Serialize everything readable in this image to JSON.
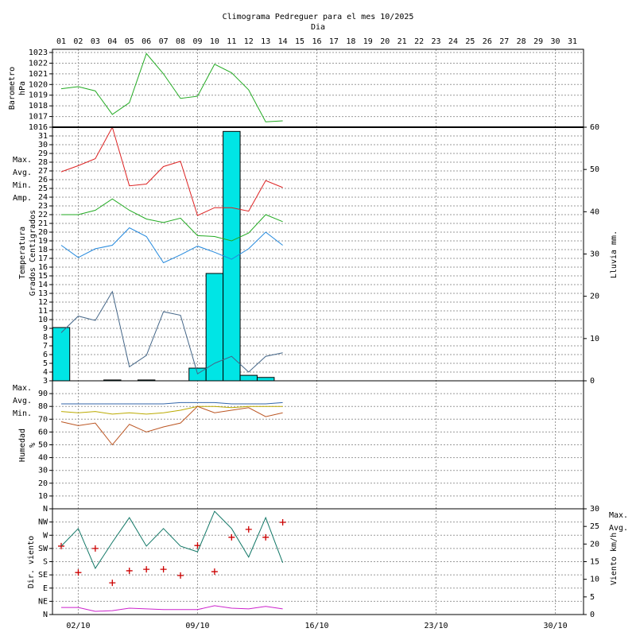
{
  "chart_data": {
    "title": "Climograma Pedreguer para el mes 10/2025",
    "subtitle": "Dia",
    "categories": [
      "01",
      "02",
      "03",
      "04",
      "05",
      "06",
      "07",
      "08",
      "09",
      "10",
      "11",
      "12",
      "13",
      "14",
      "15",
      "16",
      "17",
      "18",
      "19",
      "20",
      "21",
      "22",
      "23",
      "24",
      "25",
      "26",
      "27",
      "28",
      "29",
      "30",
      "31"
    ],
    "xticks": [
      {
        "value": 2,
        "label": "02/10"
      },
      {
        "value": 9,
        "label": "09/10"
      },
      {
        "value": 16,
        "label": "16/10"
      },
      {
        "value": 23,
        "label": "23/10"
      },
      {
        "value": 30,
        "label": "30/10"
      }
    ],
    "grid": true,
    "panels": [
      {
        "type": "line",
        "ylabel": [
          "Barometro",
          "hPa"
        ],
        "ylabel_color": "#22aa22",
        "ylim": [
          1016,
          1023.3
        ],
        "yticks": [
          1016,
          1017,
          1018,
          1019,
          1020,
          1021,
          1022,
          1023
        ],
        "series": [
          {
            "type": "line",
            "color": "#22aa22",
            "values": [
              1019.6,
              1019.8,
              1019.4,
              1017.2,
              1018.3,
              1022.9,
              1021.0,
              1018.7,
              1018.9,
              1021.9,
              1021.1,
              1019.5,
              1016.5,
              1016.6,
              null,
              null,
              null,
              null,
              null,
              null,
              null,
              null,
              null,
              null,
              null,
              null,
              null,
              null,
              null,
              null,
              null
            ]
          }
        ]
      },
      {
        "type": "line",
        "ylabel": [
          "Temperatura",
          "Grados Centigrados"
        ],
        "ylabel_color": "#dd2222",
        "ylim": [
          3,
          32
        ],
        "yticks": [
          3,
          4,
          5,
          6,
          7,
          8,
          9,
          10,
          11,
          12,
          13,
          14,
          15,
          16,
          17,
          18,
          19,
          20,
          21,
          22,
          23,
          24,
          25,
          26,
          27,
          28,
          29,
          30,
          31
        ],
        "y2label": "Lluvia mm.",
        "y2label_color": "#00c8c8",
        "y2lim": [
          0,
          60
        ],
        "y2ticks": [
          0,
          10,
          20,
          30,
          40,
          50,
          60
        ],
        "series": [
          {
            "type": "bar",
            "axis": "y2",
            "color": "#00e5e5",
            "values": [
              12.6,
              0,
              0,
              0.2,
              0,
              0.2,
              0,
              0,
              3.0,
              25.4,
              59.0,
              1.3,
              0.8,
              0,
              null,
              null,
              null,
              null,
              null,
              null,
              null,
              null,
              null,
              null,
              null,
              null,
              null,
              null,
              null,
              null,
              null
            ]
          },
          {
            "type": "line",
            "name": "Max.",
            "color": "#dd2222",
            "values": [
              26.9,
              27.6,
              28.4,
              32,
              25.3,
              25.5,
              27.5,
              28.1,
              21.9,
              22.8,
              22.8,
              22.4,
              25.9,
              25.1,
              null,
              null,
              null,
              null,
              null,
              null,
              null,
              null,
              null,
              null,
              null,
              null,
              null,
              null,
              null,
              null,
              null
            ]
          },
          {
            "type": "line",
            "name": "Avg.",
            "color": "#22aa22",
            "values": [
              22.0,
              22.0,
              22.5,
              23.8,
              22.5,
              21.5,
              21.1,
              21.6,
              19.6,
              19.5,
              19.0,
              19.9,
              22.0,
              21.2,
              null,
              null,
              null,
              null,
              null,
              null,
              null,
              null,
              null,
              null,
              null,
              null,
              null,
              null,
              null,
              null,
              null
            ]
          },
          {
            "type": "line",
            "name": "Min.",
            "color": "#2288dd",
            "values": [
              18.5,
              17.1,
              18.1,
              18.5,
              20.5,
              19.5,
              16.5,
              17.4,
              18.4,
              17.7,
              16.9,
              18.1,
              20.0,
              18.5,
              null,
              null,
              null,
              null,
              null,
              null,
              null,
              null,
              null,
              null,
              null,
              null,
              null,
              null,
              null,
              null,
              null
            ]
          },
          {
            "type": "line",
            "name": "Amp.",
            "color": "#446688",
            "values": [
              8.5,
              10.4,
              9.9,
              13.2,
              4.6,
              5.9,
              10.9,
              10.5,
              3.8,
              5.0,
              5.8,
              4.0,
              5.8,
              6.2,
              null,
              null,
              null,
              null,
              null,
              null,
              null,
              null,
              null,
              null,
              null,
              null,
              null,
              null,
              null,
              null,
              null
            ]
          }
        ]
      },
      {
        "type": "line",
        "ylabel": [
          "Humedad",
          "%"
        ],
        "ylabel_color": "#bb5522",
        "ylim": [
          0,
          100
        ],
        "yticks": [
          10,
          20,
          30,
          40,
          50,
          60,
          70,
          80,
          90
        ],
        "series": [
          {
            "type": "line",
            "name": "Max.",
            "color": "#3366aa",
            "values": [
              82,
              82,
              82,
              82,
              82,
              82,
              82,
              83,
              83,
              83,
              82,
              82,
              82,
              83,
              null,
              null,
              null,
              null,
              null,
              null,
              null,
              null,
              null,
              null,
              null,
              null,
              null,
              null,
              null,
              null,
              null
            ]
          },
          {
            "type": "line",
            "name": "Avg.",
            "color": "#bbaa00",
            "values": [
              76,
              75,
              76,
              74,
              75,
              74,
              75,
              77,
              80,
              80,
              79,
              80,
              80,
              80,
              null,
              null,
              null,
              null,
              null,
              null,
              null,
              null,
              null,
              null,
              null,
              null,
              null,
              null,
              null,
              null,
              null
            ]
          },
          {
            "type": "line",
            "name": "Min.",
            "color": "#bb5522",
            "values": [
              68,
              65,
              67,
              50,
              66,
              60,
              64,
              67,
              80,
              75,
              77,
              79,
              72,
              75,
              null,
              null,
              null,
              null,
              null,
              null,
              null,
              null,
              null,
              null,
              null,
              null,
              null,
              null,
              null,
              null,
              null
            ]
          }
        ]
      },
      {
        "type": "line",
        "ylabel": [
          "Dir. viento"
        ],
        "ylabel_color": "#cc0000",
        "ylim": [
          0,
          360
        ],
        "yticks": [
          {
            "value": 0,
            "label": "N"
          },
          {
            "value": 45,
            "label": "NE"
          },
          {
            "value": 90,
            "label": "E"
          },
          {
            "value": 135,
            "label": "SE"
          },
          {
            "value": 180,
            "label": "S"
          },
          {
            "value": 225,
            "label": "SW"
          },
          {
            "value": 270,
            "label": "W"
          },
          {
            "value": 315,
            "label": "NW"
          },
          {
            "value": 360,
            "label": "N"
          }
        ],
        "y2label": "Viento km/h",
        "y2label_color": "#cc22cc",
        "y2lim": [
          0,
          30
        ],
        "y2ticks": [
          0,
          5,
          10,
          15,
          20,
          25,
          30
        ],
        "series": [
          {
            "type": "scatter",
            "color": "#cc0000",
            "values": [
              233,
              143,
              225,
              108,
              149,
              154,
              154,
              133,
              235,
              146,
              263,
              290,
              263,
              314,
              null,
              null,
              null,
              null,
              null,
              null,
              null,
              null,
              null,
              null,
              null,
              null,
              null,
              null,
              null,
              null,
              null
            ]
          },
          {
            "type": "line",
            "axis": "y2",
            "name": "Max.",
            "color": "#117766",
            "values": [
              19.4,
              24.4,
              13.1,
              20.5,
              27.5,
              19.4,
              24.4,
              19.4,
              17.8,
              29.3,
              24.4,
              16.3,
              27.5,
              14.7,
              null,
              null,
              null,
              null,
              null,
              null,
              null,
              null,
              null,
              null,
              null,
              null,
              null,
              null,
              null,
              null,
              null
            ]
          },
          {
            "type": "line",
            "axis": "y2",
            "name": "Avg.",
            "color": "#cc22cc",
            "values": [
              2.0,
              2.0,
              0.9,
              1.1,
              1.8,
              1.6,
              1.4,
              1.4,
              1.4,
              2.5,
              1.8,
              1.6,
              2.3,
              1.6,
              null,
              null,
              null,
              null,
              null,
              null,
              null,
              null,
              null,
              null,
              null,
              null,
              null,
              null,
              null,
              null,
              null
            ]
          }
        ]
      }
    ]
  }
}
